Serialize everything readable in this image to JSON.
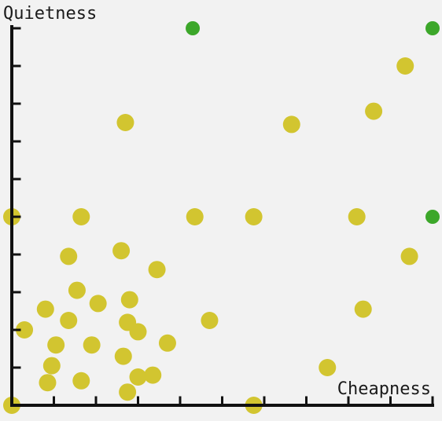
{
  "chart_data": {
    "type": "scatter",
    "title": "",
    "xlabel": "Cheapness",
    "ylabel": "Quietness",
    "xlim": [
      0,
      10
    ],
    "ylim": [
      0,
      10
    ],
    "grid": false,
    "series": [
      {
        "color": "#d2c530",
        "points": [
          [
            0.0,
            5.0
          ],
          [
            1.65,
            5.0
          ],
          [
            4.35,
            5.0
          ],
          [
            5.75,
            5.0
          ],
          [
            8.2,
            5.0
          ],
          [
            2.7,
            7.5
          ],
          [
            6.65,
            7.45
          ],
          [
            8.6,
            7.8
          ],
          [
            9.35,
            9.0
          ],
          [
            1.35,
            3.95
          ],
          [
            2.6,
            4.1
          ],
          [
            3.45,
            3.6
          ],
          [
            9.45,
            3.95
          ],
          [
            1.55,
            3.05
          ],
          [
            0.8,
            2.55
          ],
          [
            1.35,
            2.25
          ],
          [
            2.05,
            2.7
          ],
          [
            2.8,
            2.8
          ],
          [
            2.75,
            2.2
          ],
          [
            3.0,
            1.95
          ],
          [
            4.7,
            2.25
          ],
          [
            8.35,
            2.55
          ],
          [
            0.3,
            2.0
          ],
          [
            1.05,
            1.6
          ],
          [
            1.9,
            1.6
          ],
          [
            2.65,
            1.3
          ],
          [
            3.7,
            1.65
          ],
          [
            0.95,
            1.05
          ],
          [
            3.35,
            0.8
          ],
          [
            3.0,
            0.75
          ],
          [
            7.5,
            1.0
          ],
          [
            0.85,
            0.6
          ],
          [
            1.65,
            0.65
          ],
          [
            2.75,
            0.35
          ],
          [
            0.0,
            0.0
          ],
          [
            5.75,
            0.0
          ]
        ]
      },
      {
        "color": "#3ca72a",
        "points": [
          [
            4.3,
            10.0
          ],
          [
            10.0,
            10.0
          ],
          [
            10.0,
            5.0
          ]
        ]
      }
    ]
  }
}
